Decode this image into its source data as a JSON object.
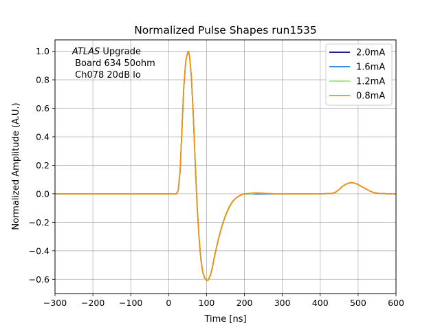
{
  "chart_data": {
    "type": "line",
    "title": "Normalized Pulse Shapes run1535",
    "xlabel": "Time [ns]",
    "ylabel": "Normalized Amplitude (A.U.)",
    "xlim": [
      -300,
      600
    ],
    "ylim": [
      -0.7,
      1.08
    ],
    "xticks": [
      -300,
      -200,
      -100,
      0,
      100,
      200,
      300,
      400,
      500,
      600
    ],
    "xtick_labels": [
      "−300",
      "−200",
      "−100",
      "0",
      "100",
      "200",
      "300",
      "400",
      "500",
      "600"
    ],
    "yticks": [
      -0.6,
      -0.4,
      -0.2,
      0.0,
      0.2,
      0.4,
      0.6,
      0.8,
      1.0
    ],
    "ytick_labels": [
      "−0.6",
      "−0.4",
      "−0.2",
      "0.0",
      "0.2",
      "0.4",
      "0.6",
      "0.8",
      "1.0"
    ],
    "grid": true,
    "legend_position": "top-right",
    "annotation": {
      "italic": "ATLAS",
      "rest": " Upgrade",
      "line2": " Board 634 50ohm",
      "line3": " Ch078 20dB lo"
    },
    "series": [
      {
        "name": "2.0mA",
        "color": "#00008b",
        "x": [
          -300,
          20,
          25,
          30,
          35,
          40,
          45,
          50,
          52,
          55,
          60,
          65,
          70,
          75,
          80,
          85,
          90,
          95,
          100,
          105,
          110,
          115,
          120,
          130,
          140,
          150,
          160,
          170,
          180,
          190,
          200,
          210,
          220,
          230,
          240,
          260,
          280,
          300,
          400,
          430,
          440,
          450,
          460,
          470,
          480,
          490,
          500,
          510,
          520,
          530,
          540,
          550,
          560,
          580,
          600
        ],
        "y": [
          0.0,
          0.0,
          0.02,
          0.15,
          0.45,
          0.75,
          0.93,
          0.99,
          1.0,
          0.97,
          0.82,
          0.55,
          0.22,
          -0.08,
          -0.3,
          -0.46,
          -0.55,
          -0.59,
          -0.605,
          -0.6,
          -0.57,
          -0.52,
          -0.45,
          -0.33,
          -0.23,
          -0.15,
          -0.09,
          -0.05,
          -0.025,
          -0.01,
          0.0,
          0.0,
          0.0,
          0.0,
          0.0,
          0.0,
          0.0,
          0.0,
          0.0,
          0.002,
          0.01,
          0.03,
          0.055,
          0.07,
          0.078,
          0.075,
          0.065,
          0.05,
          0.035,
          0.02,
          0.01,
          0.004,
          0.002,
          0.0,
          0.0
        ]
      },
      {
        "name": "1.6mA",
        "color": "#1e78e6",
        "x": [
          -300,
          20,
          25,
          30,
          35,
          40,
          45,
          50,
          52,
          55,
          60,
          65,
          70,
          75,
          80,
          85,
          90,
          95,
          100,
          105,
          110,
          115,
          120,
          130,
          140,
          150,
          160,
          170,
          180,
          190,
          200,
          210,
          220,
          230,
          240,
          260,
          280,
          300,
          400,
          430,
          440,
          450,
          460,
          470,
          480,
          490,
          500,
          510,
          520,
          530,
          540,
          550,
          560,
          580,
          600
        ],
        "y": [
          0.0,
          0.0,
          0.02,
          0.15,
          0.45,
          0.75,
          0.93,
          0.99,
          1.0,
          0.97,
          0.82,
          0.55,
          0.22,
          -0.08,
          -0.3,
          -0.46,
          -0.55,
          -0.59,
          -0.605,
          -0.6,
          -0.57,
          -0.52,
          -0.45,
          -0.33,
          -0.23,
          -0.15,
          -0.09,
          -0.05,
          -0.025,
          -0.01,
          0.0,
          0.0,
          0.0,
          0.0,
          0.0,
          0.0,
          0.0,
          0.0,
          0.0,
          0.002,
          0.01,
          0.03,
          0.055,
          0.07,
          0.078,
          0.075,
          0.065,
          0.05,
          0.035,
          0.02,
          0.01,
          0.004,
          0.002,
          0.0,
          0.0
        ]
      },
      {
        "name": "1.2mA",
        "color": "#90ee60",
        "x": [
          -300,
          20,
          25,
          30,
          35,
          40,
          45,
          50,
          52,
          55,
          60,
          65,
          70,
          75,
          80,
          85,
          90,
          95,
          100,
          105,
          110,
          115,
          120,
          130,
          140,
          150,
          160,
          170,
          180,
          190,
          200,
          210,
          220,
          230,
          240,
          260,
          280,
          300,
          400,
          430,
          440,
          450,
          460,
          470,
          480,
          490,
          500,
          510,
          520,
          530,
          540,
          550,
          560,
          580,
          600
        ],
        "y": [
          0.0,
          0.0,
          0.02,
          0.15,
          0.45,
          0.75,
          0.93,
          0.99,
          1.0,
          0.97,
          0.82,
          0.55,
          0.22,
          -0.08,
          -0.3,
          -0.46,
          -0.55,
          -0.59,
          -0.605,
          -0.6,
          -0.57,
          -0.52,
          -0.45,
          -0.33,
          -0.23,
          -0.15,
          -0.09,
          -0.05,
          -0.025,
          -0.01,
          0.0,
          0.0,
          0.0,
          0.005,
          0.005,
          0.002,
          0.0,
          0.0,
          0.0,
          0.002,
          0.01,
          0.03,
          0.055,
          0.07,
          0.078,
          0.075,
          0.065,
          0.05,
          0.035,
          0.02,
          0.01,
          0.004,
          0.002,
          0.0,
          0.0
        ]
      },
      {
        "name": "0.8mA",
        "color": "#ff8c00",
        "x": [
          -300,
          20,
          25,
          30,
          35,
          40,
          45,
          50,
          52,
          55,
          60,
          65,
          70,
          75,
          80,
          85,
          90,
          95,
          100,
          105,
          110,
          115,
          120,
          130,
          140,
          150,
          160,
          170,
          180,
          190,
          200,
          210,
          220,
          230,
          240,
          260,
          280,
          300,
          400,
          430,
          440,
          450,
          460,
          470,
          480,
          490,
          500,
          510,
          520,
          530,
          540,
          550,
          560,
          580,
          600
        ],
        "y": [
          0.0,
          0.0,
          0.02,
          0.15,
          0.45,
          0.75,
          0.93,
          0.99,
          1.0,
          0.97,
          0.82,
          0.55,
          0.22,
          -0.08,
          -0.3,
          -0.46,
          -0.55,
          -0.59,
          -0.61,
          -0.605,
          -0.575,
          -0.525,
          -0.455,
          -0.335,
          -0.235,
          -0.155,
          -0.095,
          -0.05,
          -0.025,
          -0.008,
          0.0,
          0.002,
          0.005,
          0.007,
          0.006,
          0.003,
          0.0,
          0.0,
          0.0,
          0.002,
          0.01,
          0.03,
          0.055,
          0.07,
          0.08,
          0.076,
          0.066,
          0.05,
          0.035,
          0.02,
          0.01,
          0.004,
          0.002,
          0.0,
          0.0
        ]
      }
    ]
  }
}
